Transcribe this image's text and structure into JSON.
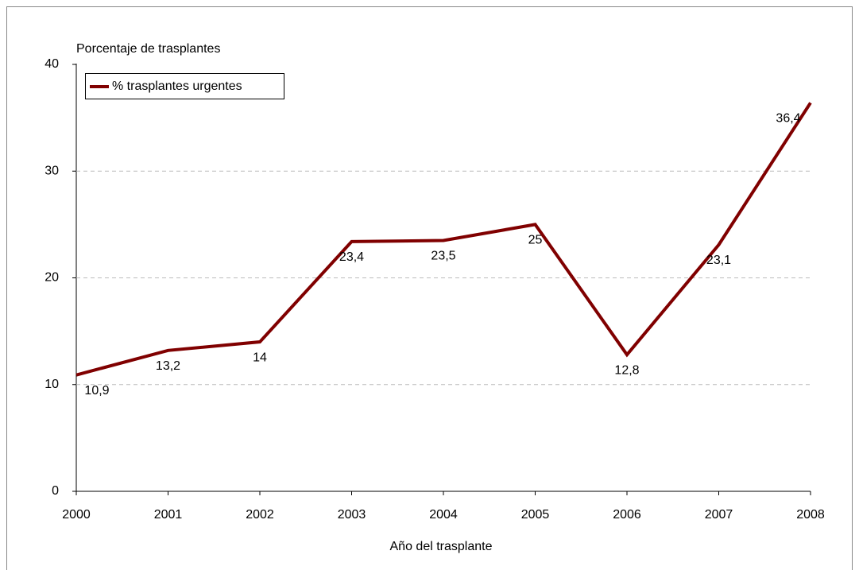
{
  "chart_data": {
    "type": "line",
    "title": "Porcentaje de trasplantes",
    "x_label": "Año del trasplante",
    "x": [
      2000,
      2001,
      2002,
      2003,
      2004,
      2005,
      2006,
      2007,
      2008
    ],
    "xlim": [
      2000,
      2008
    ],
    "xticks": [
      2000,
      2001,
      2002,
      2003,
      2004,
      2005,
      2006,
      2007,
      2008
    ],
    "ylim": [
      0,
      40
    ],
    "yticks": [
      0,
      10,
      20,
      30,
      40
    ],
    "grid": true,
    "legend": "top-left",
    "series": [
      {
        "name": "% trasplantes urgentes",
        "color": "#800000",
        "values": [
          10.9,
          13.2,
          14,
          23.4,
          23.5,
          25,
          12.8,
          23.1,
          36.4
        ],
        "value_labels": [
          "10,9",
          "13,2",
          "14",
          "23,4",
          "23,5",
          "25",
          "12,8",
          "23,1",
          "36,4"
        ]
      }
    ]
  }
}
